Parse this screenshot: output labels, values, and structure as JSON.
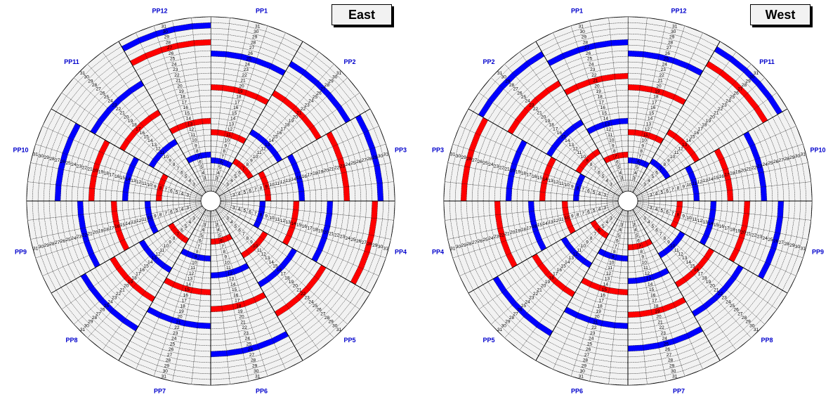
{
  "east": {
    "title": "East",
    "pp_labels": [
      "PP1",
      "PP2",
      "PP3",
      "PP4",
      "PP5",
      "PP6",
      "PP7",
      "PP8",
      "PP9",
      "PP10",
      "PP11",
      "PP12"
    ]
  },
  "west": {
    "title": "West",
    "pp_labels": [
      "PP1",
      "PP12",
      "PP11",
      "PP10",
      "PP9",
      "PP8",
      "PP7",
      "PP6",
      "PP5",
      "PP4",
      "PP3",
      "PP2"
    ]
  },
  "ring_numbers": [
    1,
    2,
    3,
    4,
    5,
    6,
    7,
    8,
    9,
    10,
    11,
    12,
    13,
    14,
    15,
    16,
    17,
    18,
    19,
    20,
    21,
    22,
    23,
    24,
    25,
    26,
    27,
    28,
    29,
    30,
    31
  ],
  "colors": {
    "red": "#ff0000",
    "blue": "#0000ff",
    "cell": "#f2f2f2",
    "label": "#0000cc"
  },
  "footer": ""
}
